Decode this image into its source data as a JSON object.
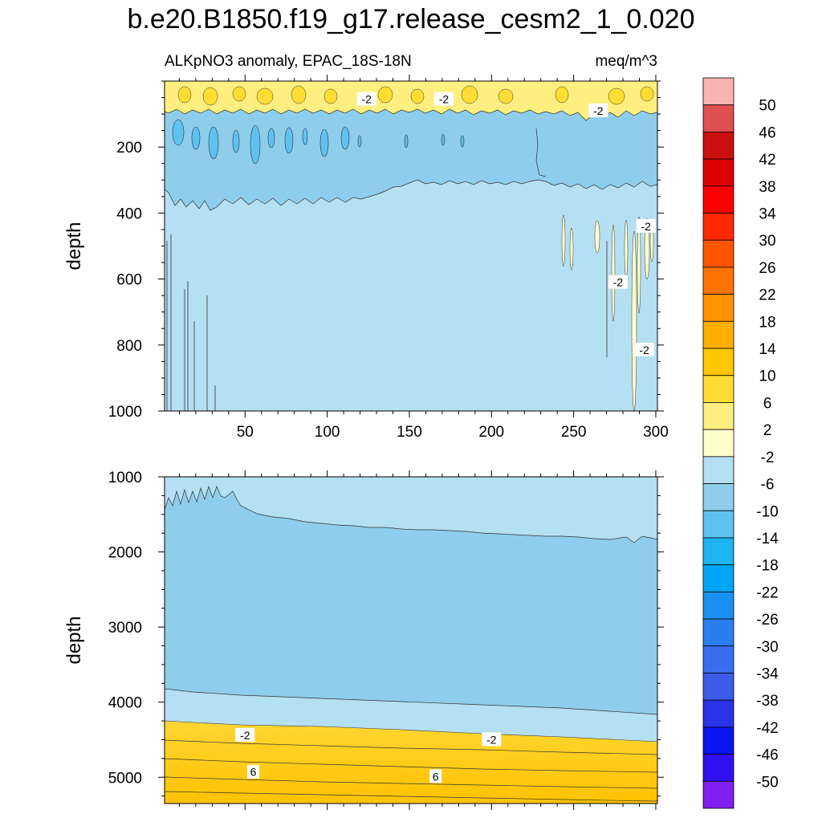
{
  "figure": {
    "title": "b.e20.B1850.f19_g17.release_cesm2_1_0.020",
    "left_subtitle": "ALKpNO3 anomaly, EPAC_18S-18N",
    "right_subtitle": "meq/m^3"
  },
  "chart_data": {
    "type": "heatmap",
    "title": "b.e20.B1850.f19_g17.release_cesm2_1_0.020",
    "variable": "ALKpNO3 anomaly, EPAC_18S-18N",
    "units": "meq/m^3",
    "panels": [
      {
        "name": "upper",
        "ylabel": "depth",
        "xlim": [
          1,
          301
        ],
        "ylim": [
          0,
          1000
        ],
        "y_reversed": true,
        "xticks": [
          50,
          100,
          150,
          200,
          250,
          300
        ],
        "yticks": [
          200,
          400,
          600,
          800,
          1000
        ],
        "contour_labels": [
          {
            "text": "-2",
            "x": 124,
            "depth": 55
          },
          {
            "text": "-2",
            "x": 171,
            "depth": 55
          },
          {
            "text": "-2",
            "x": 265,
            "depth": 90
          },
          {
            "text": "-2",
            "x": 294,
            "depth": 440
          },
          {
            "text": "-2",
            "x": 277,
            "depth": 610
          },
          {
            "text": "-2",
            "x": 293,
            "depth": 815
          }
        ]
      },
      {
        "name": "lower",
        "ylabel": "depth",
        "xlim": [
          1,
          301
        ],
        "ylim": [
          1000,
          5350
        ],
        "y_reversed": true,
        "xticks": [
          50,
          100,
          150,
          200,
          250,
          300
        ],
        "yticks": [
          1000,
          2000,
          3000,
          4000,
          5000
        ],
        "contour_labels": [
          {
            "text": "-2",
            "x": 50,
            "depth": 4440
          },
          {
            "text": "-2",
            "x": 200,
            "depth": 4500
          },
          {
            "text": "6",
            "x": 55,
            "depth": 4930
          },
          {
            "text": "6",
            "x": 166,
            "depth": 4990
          }
        ]
      }
    ],
    "colorbar": {
      "labels": [
        "50",
        "46",
        "42",
        "38",
        "34",
        "30",
        "26",
        "22",
        "18",
        "14",
        "10",
        "6",
        "2",
        "-2",
        "-6",
        "-10",
        "-14",
        "-18",
        "-22",
        "-26",
        "-30",
        "-34",
        "-38",
        "-42",
        "-46",
        "-50"
      ],
      "colors": [
        "#f9b3b3",
        "#e05050",
        "#cc1010",
        "#dd0000",
        "#ff0000",
        "#ff2a00",
        "#ff5500",
        "#ff7400",
        "#ff9300",
        "#ffaf00",
        "#ffc700",
        "#ffdd33",
        "#ffef80",
        "#ffffcc",
        "#b5dff2",
        "#8fcdec",
        "#5ec2f0",
        "#1cb5f2",
        "#00a6f5",
        "#1a90f0",
        "#2a7ff0",
        "#3a6ef0",
        "#3d5ce8",
        "#2a33e8",
        "#0a14f0",
        "#3010f0",
        "#8020ee"
      ]
    }
  }
}
